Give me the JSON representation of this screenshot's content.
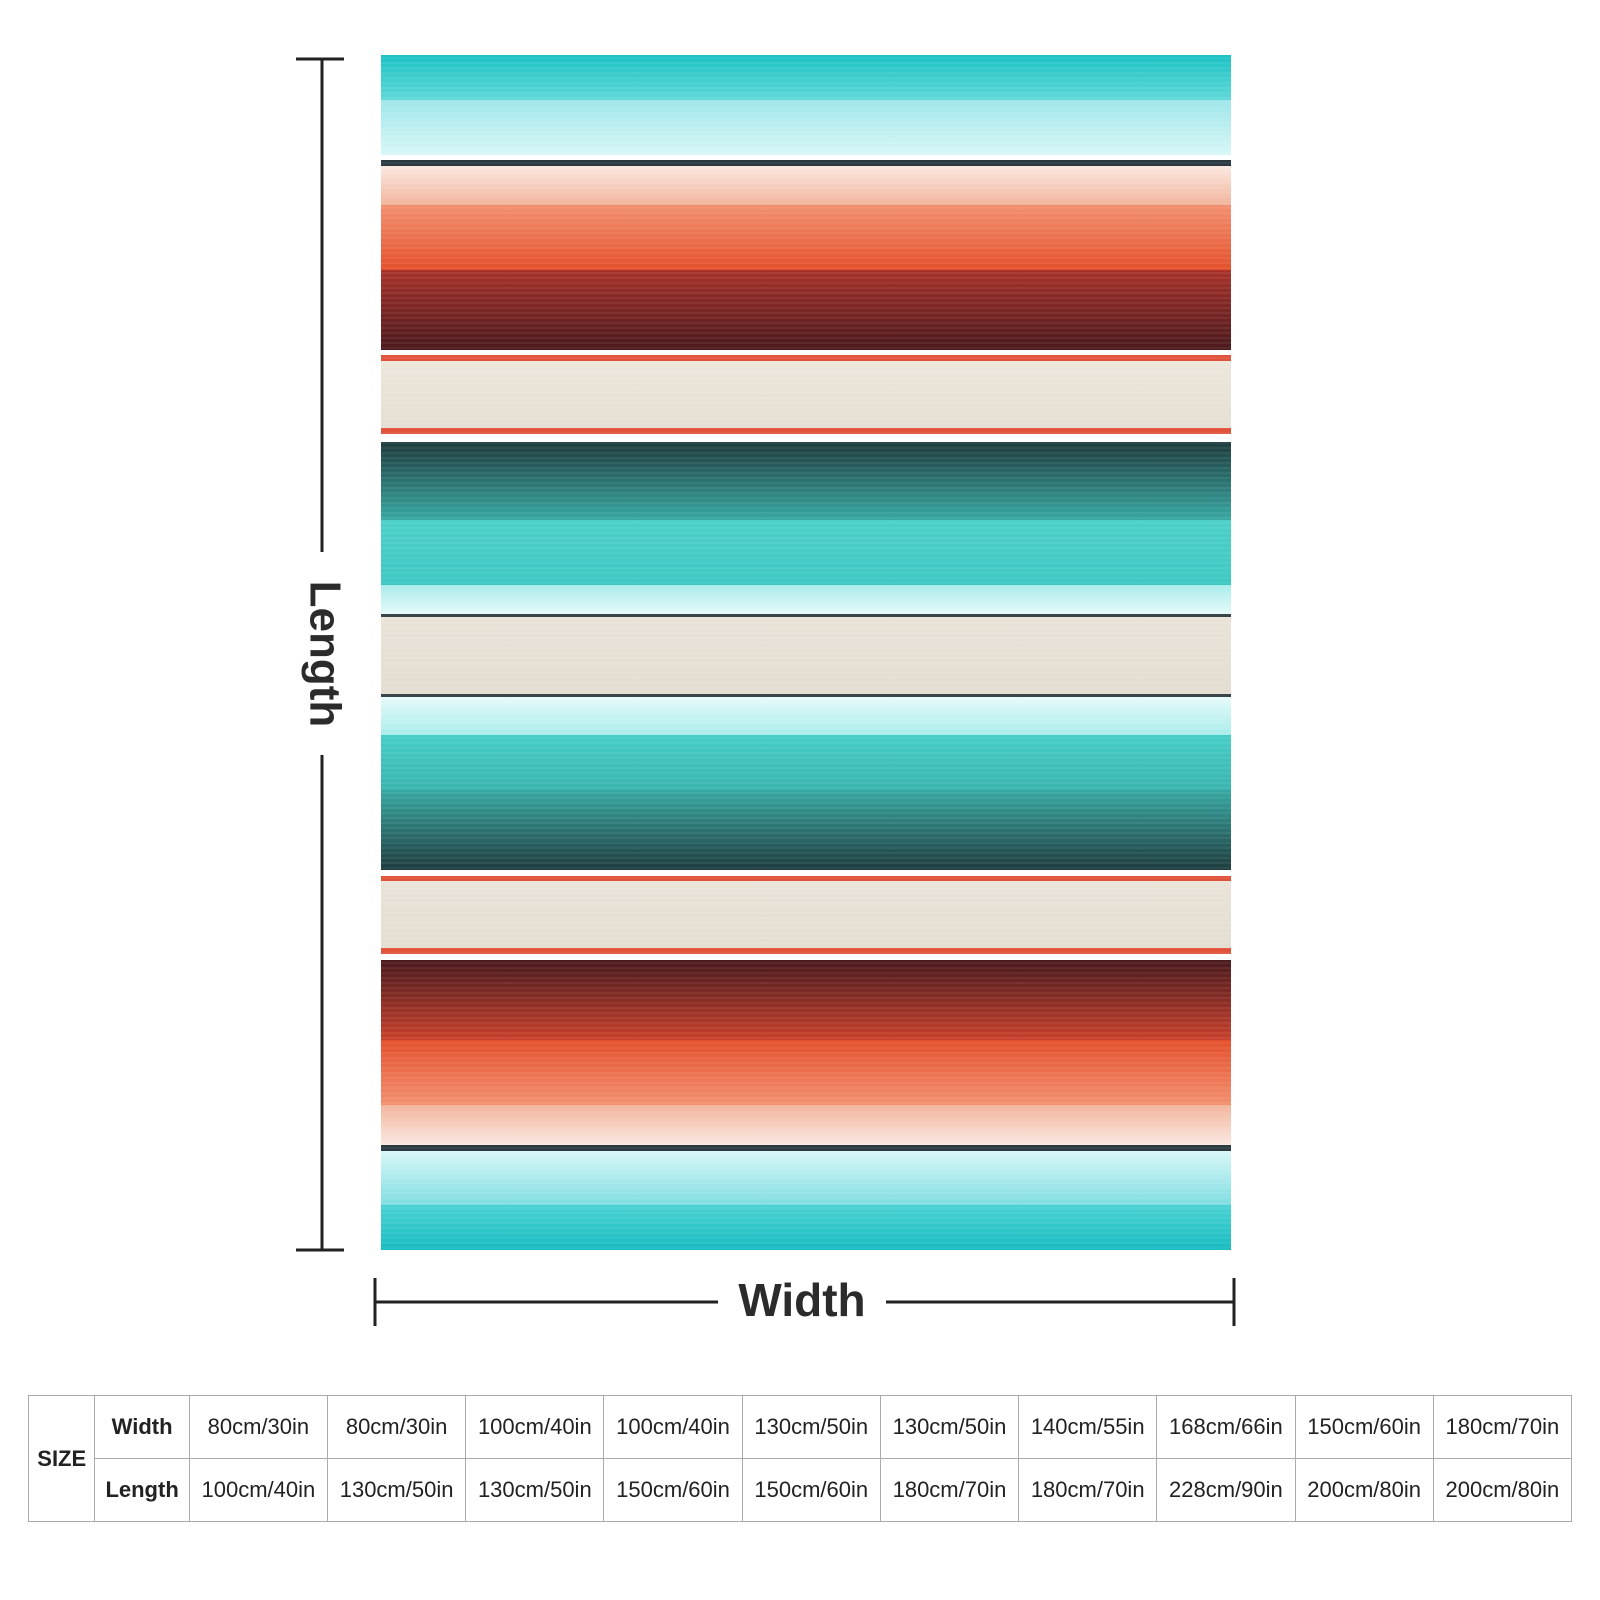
{
  "labels": {
    "length": "Length",
    "width": "Width"
  },
  "table": {
    "header": "SIZE",
    "row_labels": [
      "Width",
      "Length"
    ],
    "rows": [
      [
        "80cm/30in",
        "80cm/30in",
        "100cm/40in",
        "100cm/40in",
        "130cm/50in",
        "130cm/50in",
        "140cm/55in",
        "168cm/66in",
        "150cm/60in",
        "180cm/70in"
      ],
      [
        "100cm/40in",
        "130cm/50in",
        "130cm/50in",
        "150cm/60in",
        "150cm/60in",
        "180cm/70in",
        "180cm/70in",
        "228cm/90in",
        "200cm/80in",
        "200cm/80in"
      ]
    ]
  }
}
